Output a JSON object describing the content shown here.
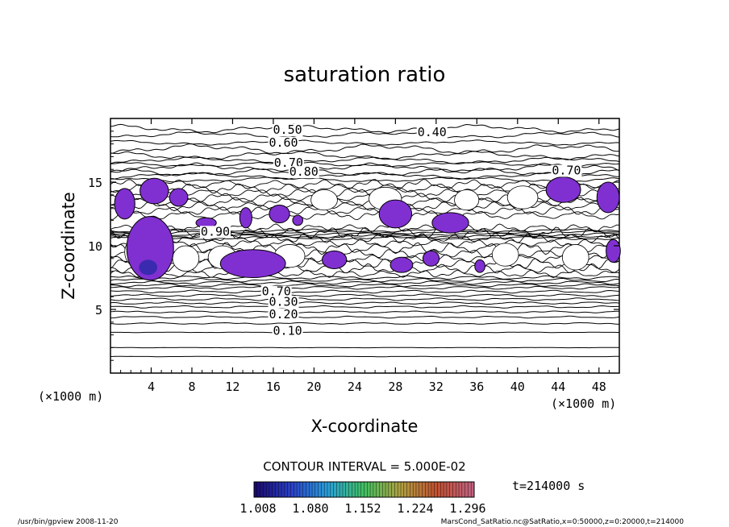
{
  "chart_data": {
    "type": "contour",
    "title": "saturation ratio",
    "xlabel": "X-coordinate",
    "ylabel": "Z-coordinate",
    "x_unit": "(×1000 m)",
    "y_unit": "(×1000 m)",
    "xlim": [
      0,
      50
    ],
    "ylim": [
      0,
      20
    ],
    "x_ticks": [
      4,
      8,
      12,
      16,
      20,
      24,
      28,
      32,
      36,
      40,
      44,
      48
    ],
    "y_ticks": [
      5,
      10,
      15
    ],
    "contour_labels": [
      {
        "text": "0.50",
        "x": 17.4,
        "z": 18.8
      },
      {
        "text": "0.60",
        "x": 17.0,
        "z": 17.8
      },
      {
        "text": "0.40",
        "x": 31.6,
        "z": 18.6
      },
      {
        "text": "0.70",
        "x": 17.5,
        "z": 16.2
      },
      {
        "text": "0.80",
        "x": 19.0,
        "z": 15.5
      },
      {
        "text": "0.70",
        "x": 44.8,
        "z": 15.6
      },
      {
        "text": "0.90",
        "x": 10.3,
        "z": 10.8
      },
      {
        "text": "0.70",
        "x": 16.3,
        "z": 6.1
      },
      {
        "text": "0.30",
        "x": 17.0,
        "z": 5.3
      },
      {
        "text": "0.20",
        "x": 17.0,
        "z": 4.3
      },
      {
        "text": "0.10",
        "x": 17.4,
        "z": 3.0
      }
    ],
    "grid": false
  },
  "contour_interval": "CONTOUR INTERVAL = 5.000E-02",
  "colorbar": {
    "ticks": [
      "1.008",
      "1.080",
      "1.152",
      "1.224",
      "1.296"
    ],
    "range": [
      1.008,
      1.296
    ],
    "colors": [
      "#1a0a6e",
      "#2a40c8",
      "#2aa0d8",
      "#40c060",
      "#b0a040",
      "#c05030",
      "#c06080"
    ]
  },
  "time_label": "t=214000 s",
  "footer": {
    "left": "/usr/bin/gpview   2008-11-20",
    "right": "MarsCond_SatRatio.nc@SatRatio,x=0:50000,z=0:20000,t=214000"
  },
  "colors": {
    "supersat_fill": "#8030d0",
    "supersat_core": "#3a2ab0"
  }
}
